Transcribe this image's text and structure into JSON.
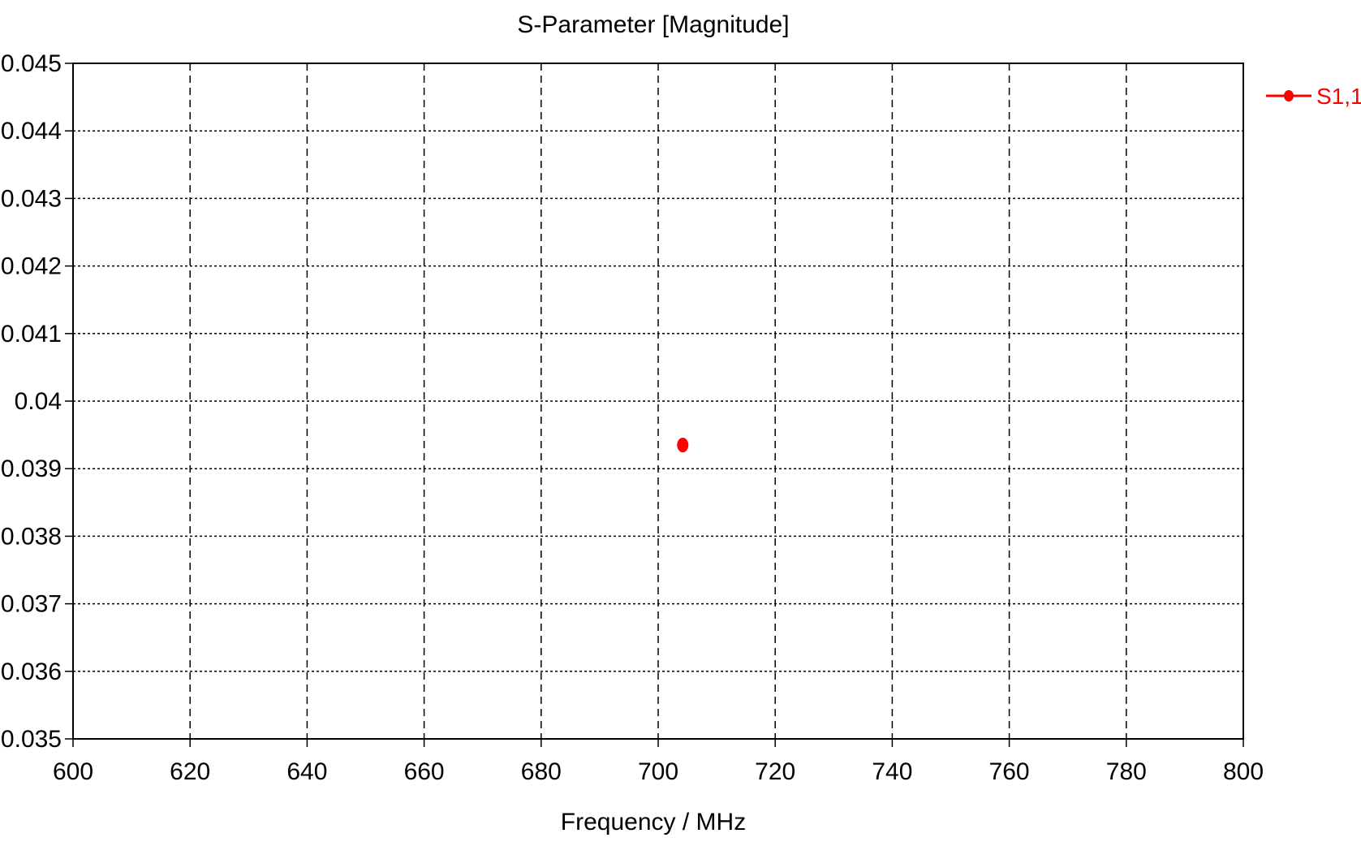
{
  "chart_data": {
    "type": "scatter",
    "title": "S-Parameter [Magnitude]",
    "xlabel": "Frequency / MHz",
    "ylabel": "",
    "xlim": [
      600,
      800
    ],
    "ylim": [
      0.035,
      0.045
    ],
    "xticks": [
      "600",
      "620",
      "640",
      "660",
      "680",
      "700",
      "720",
      "740",
      "760",
      "780",
      "800"
    ],
    "yticks": [
      "0.035",
      "0.036",
      "0.037",
      "0.038",
      "0.039",
      "0.04",
      "0.041",
      "0.042",
      "0.043",
      "0.044",
      "0.045"
    ],
    "grid": true,
    "legend_position": "top-right",
    "series": [
      {
        "name": "S1,1",
        "color": "#ff0000",
        "points": [
          {
            "x": 704.2,
            "y": 0.03935
          }
        ]
      }
    ]
  }
}
